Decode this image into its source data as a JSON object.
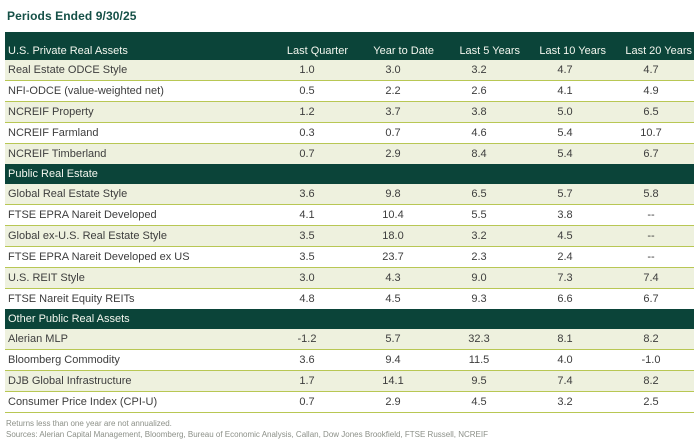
{
  "title": "Periods Ended 9/30/25",
  "colors": {
    "header_green": "#0b4439",
    "title_green": "#155047",
    "row_tint": "#eef1de",
    "divider_yellow_green": "#b8c754",
    "body_text": "#3d3d3d",
    "footnote_gray": "#8c9088"
  },
  "table": {
    "header": {
      "label": "U.S. Private Real Assets",
      "columns": [
        "Last Quarter",
        "Year to Date",
        "Last 5 Years",
        "Last 10 Years",
        "Last 20 Years"
      ]
    },
    "sections": [
      {
        "name": "",
        "rows": [
          {
            "label": "Real Estate ODCE Style",
            "values": [
              "1.0",
              "3.0",
              "3.2",
              "4.7",
              "4.7"
            ]
          },
          {
            "label": "NFI-ODCE (value-weighted net)",
            "values": [
              "0.5",
              "2.2",
              "2.6",
              "4.1",
              "4.9"
            ]
          },
          {
            "label": "NCREIF Property",
            "values": [
              "1.2",
              "3.7",
              "3.8",
              "5.0",
              "6.5"
            ]
          },
          {
            "label": "NCREIF Farmland",
            "values": [
              "0.3",
              "0.7",
              "4.6",
              "5.4",
              "10.7"
            ]
          },
          {
            "label": "NCREIF Timberland",
            "values": [
              "0.7",
              "2.9",
              "8.4",
              "5.4",
              "6.7"
            ]
          }
        ]
      },
      {
        "name": "Public Real Estate",
        "rows": [
          {
            "label": "Global Real Estate Style",
            "values": [
              "3.6",
              "9.8",
              "6.5",
              "5.7",
              "5.8"
            ]
          },
          {
            "label": "FTSE EPRA Nareit Developed",
            "values": [
              "4.1",
              "10.4",
              "5.5",
              "3.8",
              "--"
            ]
          },
          {
            "label": "Global ex-U.S. Real Estate Style",
            "values": [
              "3.5",
              "18.0",
              "3.2",
              "4.5",
              "--"
            ]
          },
          {
            "label": "FTSE EPRA Nareit Developed ex US",
            "values": [
              "3.5",
              "23.7",
              "2.3",
              "2.4",
              "--"
            ]
          },
          {
            "label": "U.S. REIT Style",
            "values": [
              "3.0",
              "4.3",
              "9.0",
              "7.3",
              "7.4"
            ]
          },
          {
            "label": "FTSE Nareit Equity REITs",
            "values": [
              "4.8",
              "4.5",
              "9.3",
              "6.6",
              "6.7"
            ]
          }
        ]
      },
      {
        "name": "Other Public Real Assets",
        "rows": [
          {
            "label": "Alerian MLP",
            "values": [
              "-1.2",
              "5.7",
              "32.3",
              "8.1",
              "8.2"
            ]
          },
          {
            "label": "Bloomberg Commodity",
            "values": [
              "3.6",
              "9.4",
              "11.5",
              "4.0",
              "-1.0"
            ]
          },
          {
            "label": "DJB Global Infrastructure",
            "values": [
              "1.7",
              "14.1",
              "9.5",
              "7.4",
              "8.2"
            ]
          },
          {
            "label": "Consumer Price Index (CPI-U)",
            "values": [
              "0.7",
              "2.9",
              "4.5",
              "3.2",
              "2.5"
            ]
          }
        ]
      }
    ]
  },
  "footnotes": [
    "Returns less than one year are not annualized.",
    "Sources: Alerian Capital Management, Bloomberg, Bureau of Economic Analysis, Callan, Dow Jones Brookfield, FTSE Russell, NCREIF"
  ]
}
